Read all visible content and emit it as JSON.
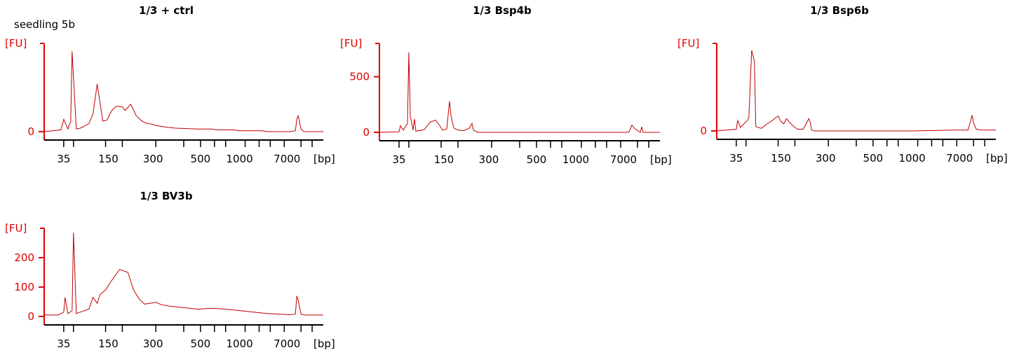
{
  "annotation": "seedling 5b",
  "chart_data": [
    {
      "type": "line",
      "title": "1/3 + ctrl",
      "ylabel": "[FU]",
      "xlabel": "[bp]",
      "x_ticks": [
        "35",
        "150",
        "300",
        "500",
        "1000",
        "7000"
      ],
      "y_ticks": [
        0
      ],
      "ylim": [
        0,
        100
      ],
      "color": "#c00000",
      "axis_color": "#e00000",
      "series": [
        {
          "x": [
            0,
            0.06,
            0.07,
            0.085,
            0.09,
            0.095,
            0.1,
            0.115,
            0.13,
            0.16,
            0.175,
            0.19,
            0.21,
            0.225,
            0.235,
            0.245,
            0.26,
            0.28,
            0.29,
            0.31,
            0.33,
            0.35,
            0.37,
            0.38,
            0.39,
            0.4,
            0.42,
            0.44,
            0.47,
            0.55,
            0.6,
            0.62,
            0.68,
            0.7,
            0.75,
            0.78,
            0.8,
            0.82,
            0.86,
            0.88,
            0.9,
            0.905,
            0.91,
            0.92,
            0.93,
            1
          ],
          "y": [
            0,
            2,
            14,
            3,
            8,
            11,
            91,
            3,
            4,
            9,
            20,
            54,
            12,
            13,
            20,
            25,
            29,
            28,
            24,
            31,
            18,
            12,
            9,
            9,
            8,
            7,
            6,
            5,
            4,
            3,
            3,
            2,
            2,
            1,
            1,
            1,
            0,
            0,
            0,
            0,
            1,
            14,
            18,
            3,
            0,
            0
          ]
        }
      ]
    },
    {
      "type": "line",
      "title": "1/3 Bsp4b",
      "ylabel": "[FU]",
      "xlabel": "[bp]",
      "x_ticks": [
        "35",
        "150",
        "300",
        "500",
        "1000",
        "7000"
      ],
      "y_ticks": [
        0,
        500
      ],
      "ylim": [
        0,
        800
      ],
      "color": "#c00000",
      "axis_color": "#e00000",
      "series": [
        {
          "x": [
            0,
            0.07,
            0.075,
            0.085,
            0.1,
            0.105,
            0.11,
            0.12,
            0.125,
            0.13,
            0.16,
            0.18,
            0.2,
            0.215,
            0.225,
            0.24,
            0.25,
            0.255,
            0.265,
            0.28,
            0.3,
            0.32,
            0.33,
            0.335,
            0.35,
            0.5,
            0.7,
            0.88,
            0.89,
            0.9,
            0.91,
            0.93,
            0.935,
            0.94,
            1
          ],
          "y": [
            0,
            5,
            60,
            20,
            80,
            720,
            150,
            20,
            120,
            10,
            25,
            90,
            110,
            60,
            20,
            30,
            280,
            150,
            40,
            20,
            15,
            35,
            80,
            20,
            0,
            0,
            0,
            0,
            5,
            65,
            35,
            0,
            50,
            0,
            0
          ]
        }
      ]
    },
    {
      "type": "line",
      "title": "1/3 Bsp6b",
      "ylabel": "[FU]",
      "xlabel": "[bp]",
      "x_ticks": [
        "35",
        "150",
        "300",
        "500",
        "1000",
        "7000"
      ],
      "y_ticks": [
        0
      ],
      "ylim": [
        0,
        100
      ],
      "color": "#c00000",
      "axis_color": "#e00000",
      "series": [
        {
          "x": [
            0,
            0.07,
            0.075,
            0.085,
            0.1,
            0.11,
            0.115,
            0.125,
            0.135,
            0.14,
            0.16,
            0.18,
            0.2,
            0.21,
            0.22,
            0.23,
            0.24,
            0.25,
            0.26,
            0.27,
            0.28,
            0.29,
            0.31,
            0.33,
            0.335,
            0.34,
            0.35,
            0.5,
            0.7,
            0.85,
            0.9,
            0.91,
            0.915,
            0.92,
            0.93,
            0.95,
            1
          ],
          "y": [
            0,
            2,
            12,
            4,
            9,
            12,
            15,
            92,
            80,
            5,
            3,
            8,
            12,
            15,
            17,
            11,
            8,
            14,
            10,
            7,
            4,
            2,
            2,
            14,
            10,
            1,
            0,
            0,
            0,
            1,
            1,
            12,
            18,
            9,
            2,
            1,
            1
          ]
        }
      ]
    },
    {
      "type": "line",
      "title": "1/3 BV3b",
      "ylabel": "[FU]",
      "xlabel": "[bp]",
      "x_ticks": [
        "35",
        "150",
        "300",
        "500",
        "1000",
        "7000"
      ],
      "y_ticks": [
        0,
        100,
        200
      ],
      "ylim": [
        0,
        300
      ],
      "color": "#c00000",
      "axis_color": "#e00000",
      "series": [
        {
          "x": [
            0,
            0.05,
            0.07,
            0.075,
            0.085,
            0.1,
            0.105,
            0.115,
            0.13,
            0.16,
            0.175,
            0.19,
            0.2,
            0.22,
            0.24,
            0.27,
            0.3,
            0.31,
            0.32,
            0.34,
            0.36,
            0.38,
            0.4,
            0.42,
            0.45,
            0.5,
            0.55,
            0.6,
            0.65,
            0.7,
            0.75,
            0.78,
            0.8,
            0.84,
            0.88,
            0.9,
            0.905,
            0.91,
            0.92,
            0.93,
            1
          ],
          "y": [
            5,
            5,
            15,
            65,
            10,
            20,
            285,
            10,
            15,
            25,
            65,
            45,
            75,
            90,
            120,
            160,
            150,
            120,
            90,
            60,
            42,
            45,
            48,
            40,
            35,
            30,
            25,
            28,
            25,
            20,
            15,
            12,
            10,
            8,
            6,
            8,
            70,
            55,
            8,
            5,
            5
          ]
        }
      ]
    }
  ]
}
